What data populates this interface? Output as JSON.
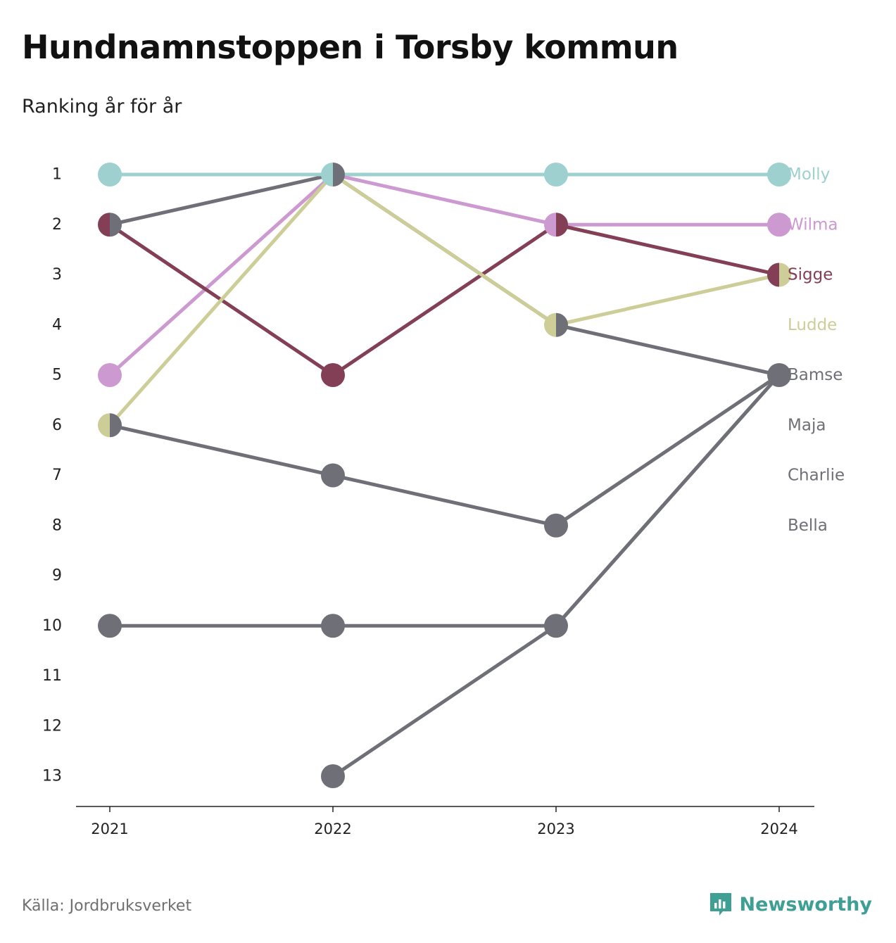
{
  "title": "Hundnamnstoppen i Torsby kommun",
  "subtitle": "Ranking år för år",
  "source": "Källa: Jordbruksverket",
  "brand": {
    "name": "Newsworthy",
    "icon": "newsworthy-logo-icon"
  },
  "colors": {
    "teal": "#9dd0cf",
    "pink": "#cc99d1",
    "maroon": "#823f55",
    "olive": "#cdcd98",
    "gray": "#6f6f77",
    "brand": "#3f9f95"
  },
  "chart_data": {
    "type": "line",
    "subtype": "bump",
    "x": [
      "2021",
      "2022",
      "2023",
      "2024"
    ],
    "y_ticks": [
      "1",
      "2",
      "3",
      "4",
      "5",
      "6",
      "7",
      "8",
      "9",
      "10",
      "11",
      "12",
      "13"
    ],
    "ylim": [
      1,
      13
    ],
    "y_inverted": true,
    "grid": false,
    "legend": "end-labels-right",
    "series": [
      {
        "name": "Molly",
        "color": "#9dd0cf",
        "values": [
          1,
          1,
          1,
          1
        ]
      },
      {
        "name": "Wilma",
        "color": "#cc99d1",
        "values": [
          5,
          1,
          2,
          2
        ]
      },
      {
        "name": "Sigge",
        "color": "#823f55",
        "values": [
          2,
          5,
          2,
          3
        ]
      },
      {
        "name": "Ludde",
        "color": "#cdcd98",
        "values": [
          6,
          1,
          4,
          3
        ]
      },
      {
        "name": "Bamse",
        "color": "#6f6f77",
        "values": [
          2,
          1,
          4,
          5
        ]
      },
      {
        "name": "Maja",
        "color": "#6f6f77",
        "values": [
          6,
          7,
          8,
          5
        ]
      },
      {
        "name": "Charlie",
        "color": "#6f6f77",
        "values": [
          10,
          10,
          10,
          5
        ]
      },
      {
        "name": "Bella",
        "color": "#6f6f77",
        "values": [
          null,
          13,
          10,
          5
        ]
      }
    ]
  }
}
